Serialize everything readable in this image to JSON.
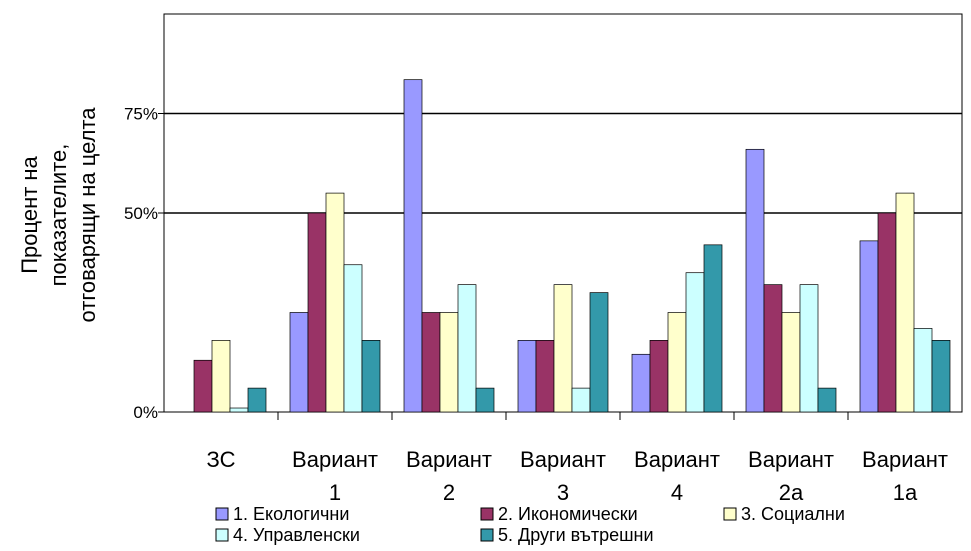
{
  "chart_data": {
    "type": "bar",
    "ylabel_lines": [
      "Процент на",
      "показателите,",
      "отговарящи на целта"
    ],
    "xlabel": "",
    "ylim": [
      0,
      1
    ],
    "yticks": [
      {
        "value": 0,
        "label": "0%"
      },
      {
        "value": 0.5,
        "label": "50%"
      },
      {
        "value": 0.75,
        "label": "75%"
      }
    ],
    "reference_lines": [
      0.5,
      0.75
    ],
    "grid": false,
    "legend_position": "bottom",
    "categories": [
      {
        "line1": "ЗС",
        "line2": ""
      },
      {
        "line1": "Вариант",
        "line2": "1"
      },
      {
        "line1": "Вариант",
        "line2": "2"
      },
      {
        "line1": "Вариант",
        "line2": "3"
      },
      {
        "line1": "Вариант",
        "line2": "4"
      },
      {
        "line1": "Вариант",
        "line2": "2а"
      },
      {
        "line1": "Вариант",
        "line2": "1а"
      }
    ],
    "series": [
      {
        "name": "1. Екологични",
        "color": "#9999ff",
        "values": [
          0,
          0.25,
          0.835,
          0.18,
          0.145,
          0.66,
          0.43
        ]
      },
      {
        "name": "2. Икономически",
        "color": "#993366",
        "values": [
          0.13,
          0.5,
          0.25,
          0.18,
          0.18,
          0.32,
          0.5
        ]
      },
      {
        "name": "3. Социални",
        "color": "#ffffcc",
        "values": [
          0.18,
          0.55,
          0.25,
          0.32,
          0.25,
          0.25,
          0.55
        ]
      },
      {
        "name": "4. Управленски",
        "color": "#ccffff",
        "values": [
          0.01,
          0.37,
          0.32,
          0.06,
          0.35,
          0.32,
          0.21
        ]
      },
      {
        "name": "5. Други вътрешни",
        "color": "#3399aa",
        "values": [
          0.06,
          0.18,
          0.06,
          0.3,
          0.42,
          0.06,
          0.18
        ]
      }
    ]
  }
}
